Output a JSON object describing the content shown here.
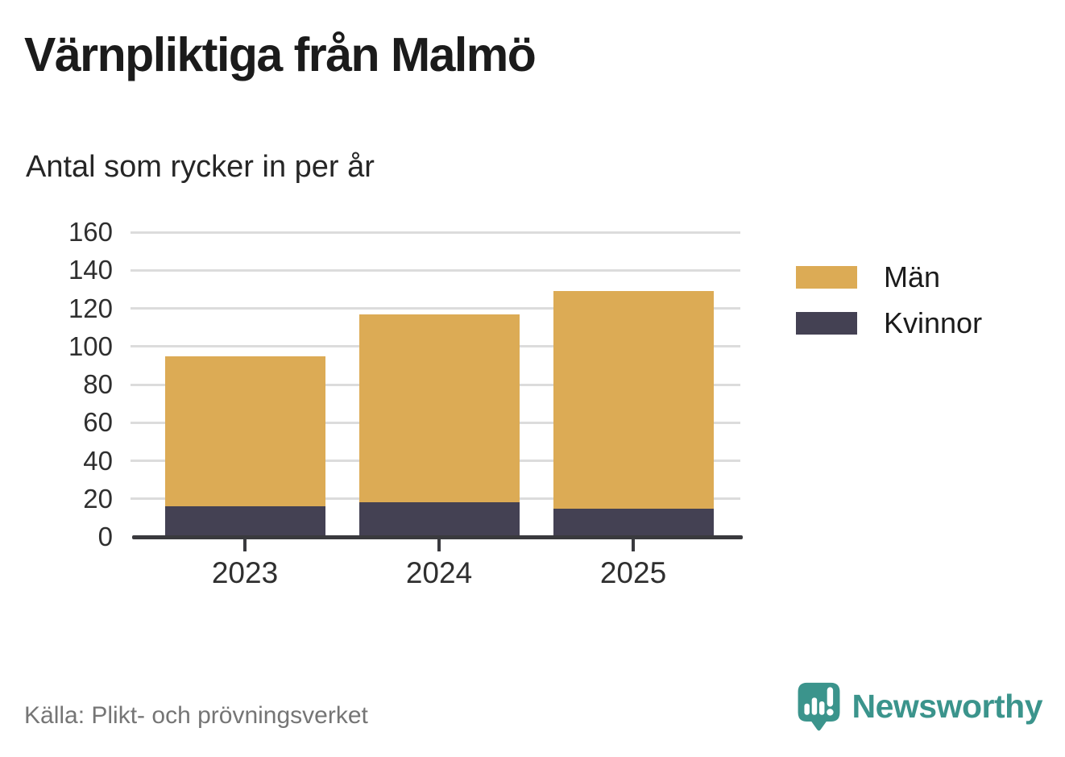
{
  "header": {
    "title": "Värnpliktiga från Malmö",
    "subtitle": "Antal som rycker in per år"
  },
  "chart_data": {
    "type": "bar",
    "stacked": true,
    "title": "Värnpliktiga från Malmö",
    "subtitle": "Antal som rycker in per år",
    "categories": [
      "2023",
      "2024",
      "2025"
    ],
    "series": [
      {
        "name": "Män",
        "color": "#dcab55",
        "values": [
          79,
          99,
          114
        ]
      },
      {
        "name": "Kvinnor",
        "color": "#444153",
        "values": [
          16,
          18,
          15
        ]
      }
    ],
    "totals": [
      95,
      117,
      129
    ],
    "stack_order_bottom_up": [
      "Kvinnor",
      "Män"
    ],
    "xlabel": "",
    "ylabel": "",
    "ylim": [
      0,
      160
    ],
    "yticks": [
      0,
      20,
      40,
      60,
      80,
      100,
      120,
      140,
      160
    ],
    "grid": true,
    "legend_position": "right"
  },
  "colors": {
    "grid": "#dcdcdc",
    "axis": "#3a3a3e",
    "brand_teal": "#3b948c"
  },
  "footer": {
    "source": "Källa: Plikt- och prövningsverket",
    "brand": "Newsworthy"
  }
}
